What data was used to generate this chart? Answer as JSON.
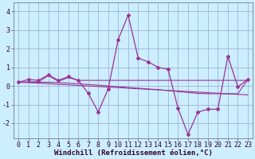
{
  "xlabel": "Windchill (Refroidissement éolien,°C)",
  "x": [
    0,
    1,
    2,
    3,
    4,
    5,
    6,
    7,
    8,
    9,
    10,
    11,
    12,
    13,
    14,
    15,
    16,
    17,
    18,
    19,
    20,
    21,
    22,
    23
  ],
  "y_main": [
    0.2,
    0.35,
    0.3,
    0.6,
    0.3,
    0.5,
    0.3,
    -0.4,
    -1.4,
    -0.15,
    2.5,
    3.8,
    1.5,
    1.3,
    1.0,
    0.9,
    -1.2,
    -2.6,
    -1.4,
    -1.25,
    -1.25,
    1.6,
    -0.05,
    0.35
  ],
  "y_line1": [
    0.2,
    0.22,
    0.22,
    0.55,
    0.25,
    0.45,
    0.3,
    0.3,
    0.3,
    0.3,
    0.3,
    0.3,
    0.3,
    0.3,
    0.3,
    0.3,
    0.3,
    0.3,
    0.3,
    0.3,
    0.3,
    0.3,
    0.3,
    0.3
  ],
  "y_line2": [
    0.2,
    0.2,
    0.2,
    0.2,
    0.18,
    0.15,
    0.12,
    0.08,
    0.04,
    0.0,
    -0.04,
    -0.08,
    -0.12,
    -0.16,
    -0.2,
    -0.25,
    -0.3,
    -0.35,
    -0.4,
    -0.42,
    -0.42,
    -0.42,
    -0.42,
    0.35
  ],
  "y_line3": [
    0.2,
    0.18,
    0.15,
    0.12,
    0.09,
    0.06,
    0.03,
    0.0,
    -0.03,
    -0.06,
    -0.09,
    -0.12,
    -0.15,
    -0.18,
    -0.21,
    -0.24,
    -0.27,
    -0.3,
    -0.33,
    -0.36,
    -0.39,
    -0.42,
    -0.45,
    -0.48
  ],
  "bg_color": "#cceeff",
  "line_color": "#993399",
  "grid_color": "#99aacc",
  "ylim": [
    -2.8,
    4.5
  ],
  "xlim": [
    -0.5,
    23.5
  ],
  "yticks": [
    -2,
    -1,
    0,
    1,
    2,
    3,
    4
  ],
  "xticks": [
    0,
    1,
    2,
    3,
    4,
    5,
    6,
    7,
    8,
    9,
    10,
    11,
    12,
    13,
    14,
    15,
    16,
    17,
    18,
    19,
    20,
    21,
    22,
    23
  ],
  "tick_fontsize": 6,
  "xlabel_fontsize": 6.5,
  "marker": "D",
  "markersize": 2.0,
  "linewidth_main": 0.9,
  "linewidth_aux": 0.8
}
